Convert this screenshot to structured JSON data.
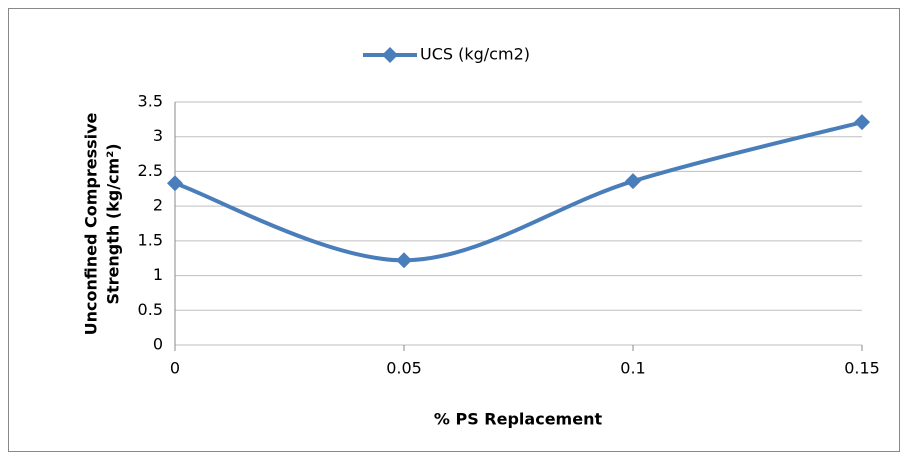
{
  "chart_data": {
    "type": "line",
    "x": [
      0,
      0.05,
      0.1,
      0.15
    ],
    "series": [
      {
        "name": "UCS (kg/cm2)",
        "color": "#4a7ebb",
        "values": [
          2.33,
          1.22,
          2.36,
          3.21
        ]
      }
    ],
    "xlabel": "% PS Replacement",
    "ylabel": [
      "Unconfined Compressive",
      "Strength (kg/cm²)"
    ],
    "xlim": [
      0,
      0.15
    ],
    "xticks": [
      0,
      0.05,
      0.1,
      0.15
    ],
    "ylim": [
      0,
      3.5
    ],
    "yticks": [
      0,
      0.5,
      1,
      1.5,
      2,
      2.5,
      3,
      3.5
    ],
    "grid": true,
    "legend": "top",
    "smooth": true
  }
}
